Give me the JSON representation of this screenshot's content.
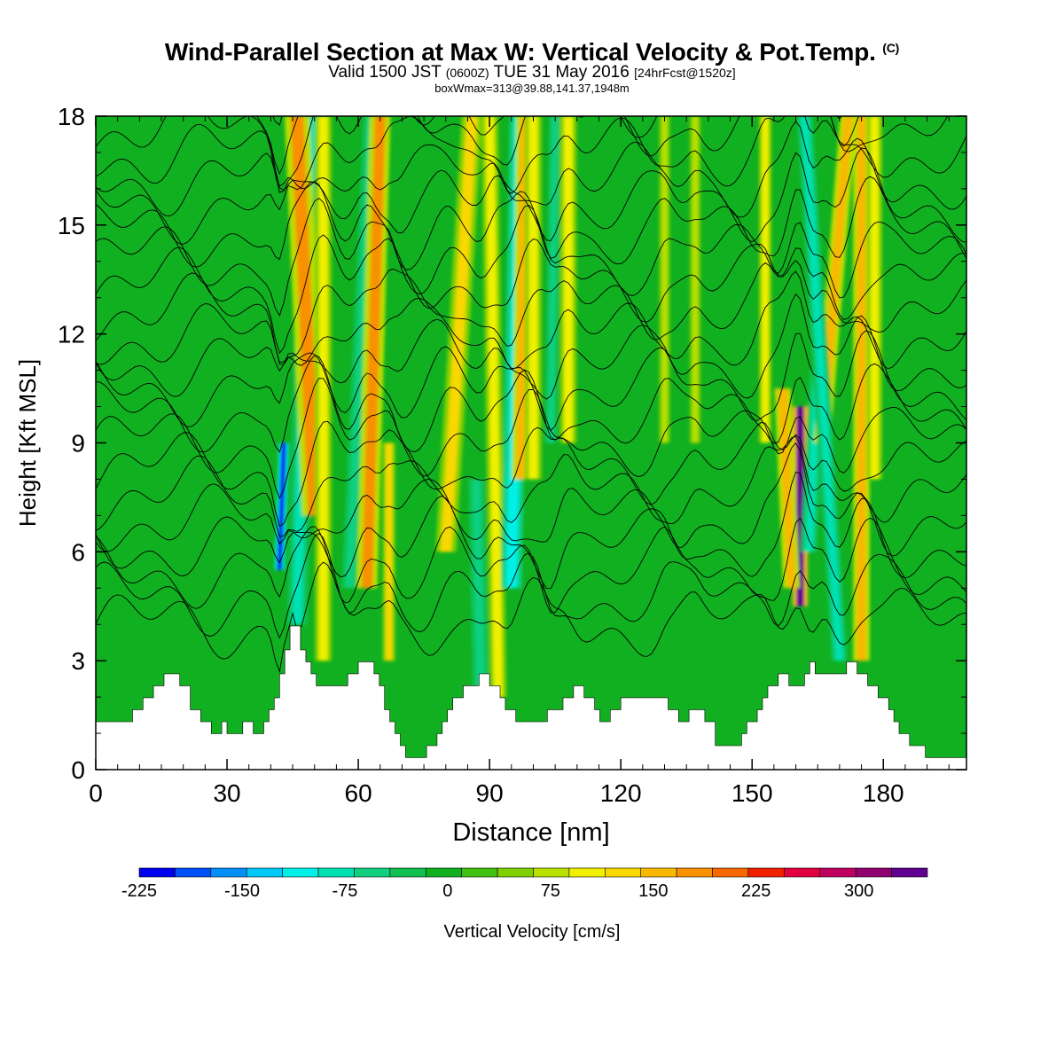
{
  "title": {
    "main": "Wind-Parallel Section at Max W: Vertical Velocity & Pot.Temp.",
    "copyright": "(C)",
    "valid_prefix": "Valid 1500 JST",
    "valid_utc": "(0600Z)",
    "valid_date": "TUE 31 May 2016",
    "forecast": "[24hrFcst@1520z]",
    "box_info": "boxWmax=313@39.88,141.37,1948m"
  },
  "colorbar_label": "Vertical Velocity [cm/s]",
  "colors": {
    "palette": [
      "#0000f0",
      "#0050f8",
      "#0090f8",
      "#00c8f8",
      "#00f0e8",
      "#00e0b0",
      "#10d080",
      "#10c050",
      "#10b020",
      "#40c010",
      "#80d000",
      "#b8e000",
      "#f0f000",
      "#f8d800",
      "#f8b800",
      "#f89000",
      "#f86800",
      "#f02000",
      "#e00040",
      "#c00060",
      "#900070",
      "#600090"
    ],
    "terrain": "#ffffff",
    "contour": "#000000"
  },
  "chart_data": {
    "type": "heatmap",
    "xlabel": "Distance [nm]",
    "ylabel": "Height [Kft MSL]",
    "xlim": [
      0,
      199
    ],
    "ylim": [
      0,
      18
    ],
    "xticks": [
      "0",
      "30",
      "60",
      "90",
      "120",
      "150",
      "180"
    ],
    "yticks": [
      "0",
      "3",
      "6",
      "9",
      "12",
      "15",
      "18"
    ],
    "colorbar": {
      "min": -225,
      "max": 350,
      "step": 25,
      "tick_values": [
        -225,
        -150,
        -75,
        0,
        75,
        150,
        225,
        300
      ],
      "tick_labels": [
        "-225",
        "-150",
        "-75",
        "0",
        "75",
        "150",
        "225",
        "300"
      ]
    },
    "terrain_profile": [
      {
        "x": 0,
        "h": 1.3
      },
      {
        "x": 6,
        "h": 1.3
      },
      {
        "x": 8,
        "h": 1.6
      },
      {
        "x": 11,
        "h": 1.9
      },
      {
        "x": 13,
        "h": 2.3
      },
      {
        "x": 17,
        "h": 2.6
      },
      {
        "x": 20,
        "h": 2.3
      },
      {
        "x": 22,
        "h": 1.6
      },
      {
        "x": 25,
        "h": 1.3
      },
      {
        "x": 27,
        "h": 1.0
      },
      {
        "x": 29,
        "h": 1.3
      },
      {
        "x": 31,
        "h": 1.0
      },
      {
        "x": 34,
        "h": 1.3
      },
      {
        "x": 37,
        "h": 1.0
      },
      {
        "x": 40,
        "h": 1.6
      },
      {
        "x": 42,
        "h": 2.6
      },
      {
        "x": 43,
        "h": 3.3
      },
      {
        "x": 45,
        "h": 4.2
      },
      {
        "x": 47,
        "h": 3.3
      },
      {
        "x": 49,
        "h": 2.6
      },
      {
        "x": 52,
        "h": 2.3
      },
      {
        "x": 56,
        "h": 2.3
      },
      {
        "x": 58,
        "h": 2.6
      },
      {
        "x": 60,
        "h": 2.9
      },
      {
        "x": 63,
        "h": 2.9
      },
      {
        "x": 65,
        "h": 2.3
      },
      {
        "x": 67,
        "h": 1.3
      },
      {
        "x": 70,
        "h": 0.6
      },
      {
        "x": 72,
        "h": 0.3
      },
      {
        "x": 76,
        "h": 0.6
      },
      {
        "x": 79,
        "h": 1.3
      },
      {
        "x": 82,
        "h": 1.9
      },
      {
        "x": 85,
        "h": 2.3
      },
      {
        "x": 88,
        "h": 2.6
      },
      {
        "x": 91,
        "h": 2.3
      },
      {
        "x": 93,
        "h": 1.9
      },
      {
        "x": 96,
        "h": 1.3
      },
      {
        "x": 100,
        "h": 1.3
      },
      {
        "x": 104,
        "h": 1.6
      },
      {
        "x": 107,
        "h": 1.9
      },
      {
        "x": 110,
        "h": 2.3
      },
      {
        "x": 113,
        "h": 1.9
      },
      {
        "x": 116,
        "h": 1.3
      },
      {
        "x": 120,
        "h": 1.9
      },
      {
        "x": 125,
        "h": 1.9
      },
      {
        "x": 130,
        "h": 1.9
      },
      {
        "x": 133,
        "h": 1.3
      },
      {
        "x": 137,
        "h": 1.6
      },
      {
        "x": 140,
        "h": 1.3
      },
      {
        "x": 142,
        "h": 0.6
      },
      {
        "x": 145,
        "h": 0.6
      },
      {
        "x": 148,
        "h": 1.0
      },
      {
        "x": 151,
        "h": 1.6
      },
      {
        "x": 154,
        "h": 2.3
      },
      {
        "x": 157,
        "h": 2.6
      },
      {
        "x": 160,
        "h": 2.3
      },
      {
        "x": 163,
        "h": 2.9
      },
      {
        "x": 166,
        "h": 2.6
      },
      {
        "x": 169,
        "h": 2.6
      },
      {
        "x": 172,
        "h": 2.9
      },
      {
        "x": 175,
        "h": 2.6
      },
      {
        "x": 178,
        "h": 2.3
      },
      {
        "x": 181,
        "h": 1.6
      },
      {
        "x": 184,
        "h": 1.0
      },
      {
        "x": 188,
        "h": 0.6
      },
      {
        "x": 192,
        "h": 0.3
      },
      {
        "x": 197,
        "h": 0.3
      },
      {
        "x": 199,
        "h": 0.6
      }
    ],
    "velocity_features": [
      {
        "x": 46,
        "h_bottom": 4.0,
        "h_top": 18,
        "tilt": 3,
        "value": -100,
        "width": 2.5
      },
      {
        "x": 42,
        "h_bottom": 5.5,
        "h_top": 9,
        "tilt": 1,
        "value": -225,
        "width": 1.2
      },
      {
        "x": 50,
        "h_bottom": 7,
        "h_top": 18,
        "tilt": -4,
        "value": 150,
        "width": 3
      },
      {
        "x": 52,
        "h_bottom": 3,
        "h_top": 18,
        "tilt": 0,
        "value": 75,
        "width": 2
      },
      {
        "x": 58,
        "h_bottom": 5,
        "h_top": 18,
        "tilt": 5,
        "value": -75,
        "width": 2
      },
      {
        "x": 62,
        "h_bottom": 5,
        "h_top": 18,
        "tilt": 3,
        "value": 150,
        "width": 2.5
      },
      {
        "x": 67,
        "h_bottom": 3,
        "h_top": 9,
        "tilt": 0,
        "value": 100,
        "width": 1.5
      },
      {
        "x": 80,
        "h_bottom": 6,
        "h_top": 18,
        "tilt": 6,
        "value": 100,
        "width": 2.5
      },
      {
        "x": 88,
        "h_bottom": 2,
        "h_top": 8,
        "tilt": -1,
        "value": -75,
        "width": 2
      },
      {
        "x": 92,
        "h_bottom": 2,
        "h_top": 18,
        "tilt": -2,
        "value": 75,
        "width": 2
      },
      {
        "x": 95,
        "h_bottom": 5,
        "h_top": 18,
        "tilt": 2,
        "value": -125,
        "width": 2.5
      },
      {
        "x": 97,
        "h_bottom": 8,
        "h_top": 18,
        "tilt": 1,
        "value": 125,
        "width": 2
      },
      {
        "x": 100,
        "h_bottom": 8,
        "h_top": 18,
        "tilt": 0,
        "value": 75,
        "width": 2
      },
      {
        "x": 104,
        "h_bottom": 9,
        "h_top": 18,
        "tilt": 1,
        "value": -75,
        "width": 1.5
      },
      {
        "x": 108,
        "h_bottom": 9,
        "h_top": 18,
        "tilt": 0,
        "value": 75,
        "width": 2
      },
      {
        "x": 130,
        "h_bottom": 9,
        "h_top": 18,
        "tilt": 0,
        "value": 50,
        "width": 1.5
      },
      {
        "x": 137,
        "h_bottom": 9,
        "h_top": 18,
        "tilt": 0,
        "value": 50,
        "width": 1.5
      },
      {
        "x": 153,
        "h_bottom": 9,
        "h_top": 18,
        "tilt": 0,
        "value": 75,
        "width": 1.5
      },
      {
        "x": 161,
        "h_bottom": 4.5,
        "h_top": 10,
        "tilt": 0,
        "value": 300,
        "width": 1.8
      },
      {
        "x": 159,
        "h_bottom": 5,
        "h_top": 10.5,
        "tilt": -2,
        "value": 125,
        "width": 2
      },
      {
        "x": 163,
        "h_bottom": 6,
        "h_top": 11,
        "tilt": 2,
        "value": -100,
        "width": 2
      },
      {
        "x": 166,
        "h_bottom": 9,
        "h_top": 18,
        "tilt": 6,
        "value": 125,
        "width": 2
      },
      {
        "x": 170,
        "h_bottom": 3,
        "h_top": 18,
        "tilt": -8,
        "value": -100,
        "width": 2
      },
      {
        "x": 175,
        "h_bottom": 3,
        "h_top": 18,
        "tilt": 0,
        "value": 125,
        "width": 2
      },
      {
        "x": 178,
        "h_bottom": 8,
        "h_top": 18,
        "tilt": 0,
        "value": 75,
        "width": 1.8
      }
    ]
  }
}
